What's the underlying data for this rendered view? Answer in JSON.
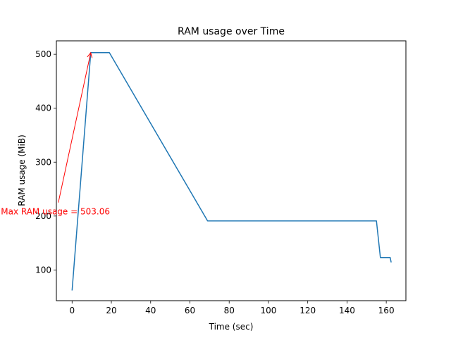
{
  "chart_data": {
    "type": "line",
    "title": "RAM usage over Time",
    "xlabel": "Time (sec)",
    "ylabel": "RAM usage (MiB)",
    "xlim": [
      -8,
      170
    ],
    "ylim": [
      43,
      525
    ],
    "xticks": [
      0,
      20,
      40,
      60,
      80,
      100,
      120,
      140,
      160
    ],
    "yticks": [
      100,
      200,
      300,
      400,
      500
    ],
    "grid": false,
    "series": [
      {
        "color": "#1f77b4",
        "x": [
          0,
          9.5,
          19,
          69,
          155,
          157,
          162,
          162.5
        ],
        "y": [
          62,
          503.06,
          503.06,
          191,
          191,
          123,
          123,
          114
        ]
      }
    ],
    "annotation": {
      "text": "Max RAM usage = 503.06",
      "color": "#ff0000",
      "text_x": -8.5,
      "text_y": 208,
      "arrow_start_x": -7,
      "arrow_start_y": 225,
      "arrow_end_x": 9.5,
      "arrow_end_y": 503.06
    }
  }
}
